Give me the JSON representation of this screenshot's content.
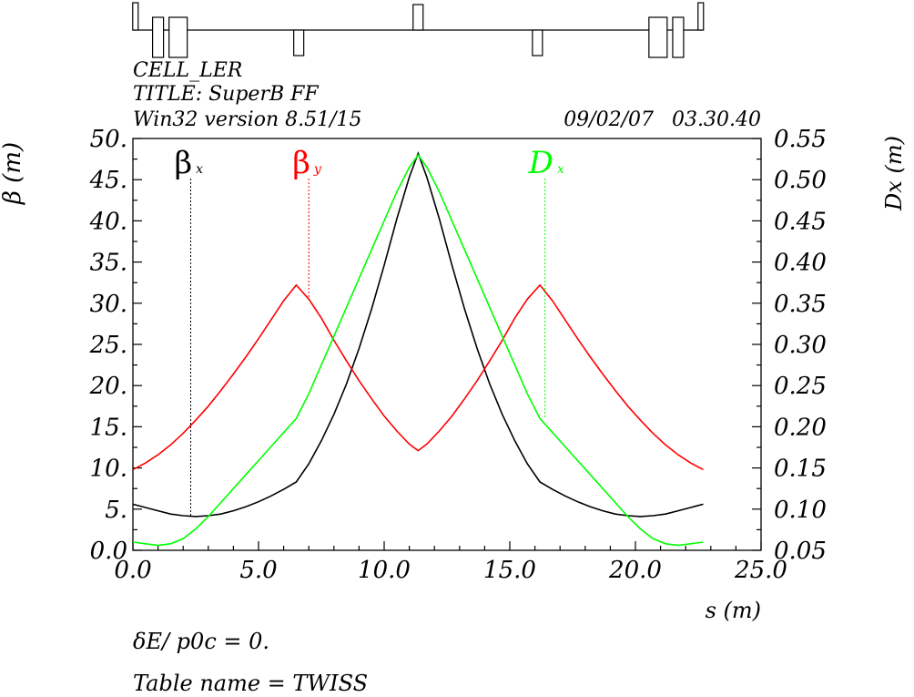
{
  "header": {
    "lines": [
      "CELL_LER",
      "TITLE: SuperB FF",
      "Win32 version 8.51/15"
    ],
    "date": "09/02/07",
    "time": "03.30.40"
  },
  "footer": {
    "delta_label": "δE/ p0c   =   0.",
    "table_name": "Table name = TWISS"
  },
  "chart_data": {
    "type": "line",
    "xlabel": "s (m)",
    "ylabel_left": "β (m)",
    "ylabel_right": "Dx (m)",
    "xlim": [
      0.0,
      25.0
    ],
    "ylim_left": [
      0.0,
      50.0
    ],
    "ylim_right": [
      0.05,
      0.55
    ],
    "x_ticks": [
      "0.0",
      "5.0",
      "10.0",
      "15.0",
      "20.0",
      "25.0"
    ],
    "y_left_ticks": [
      "0.0",
      "5.",
      "10.",
      "15.",
      "20.",
      "25.",
      "30.",
      "35.",
      "40.",
      "45.",
      "50."
    ],
    "y_right_ticks": [
      "0.05",
      "0.10",
      "0.15",
      "0.20",
      "0.25",
      "0.30",
      "0.35",
      "0.40",
      "0.45",
      "0.50",
      "0.55"
    ],
    "grid": false,
    "legend_placement": "top",
    "series": [
      {
        "name": "βx",
        "axis": "left",
        "color": "#000000",
        "legend_x": 2.3,
        "points": [
          [
            0,
            5.6
          ],
          [
            0.5,
            5.2
          ],
          [
            1,
            4.8
          ],
          [
            1.5,
            4.4
          ],
          [
            2,
            4.2
          ],
          [
            2.5,
            4.1
          ],
          [
            3,
            4.2
          ],
          [
            3.5,
            4.4
          ],
          [
            4,
            4.8
          ],
          [
            4.5,
            5.3
          ],
          [
            5,
            5.9
          ],
          [
            5.5,
            6.6
          ],
          [
            6,
            7.4
          ],
          [
            6.5,
            8.3
          ],
          [
            7,
            10.5
          ],
          [
            7.5,
            13.3
          ],
          [
            8,
            16.5
          ],
          [
            8.5,
            20.2
          ],
          [
            9,
            24.5
          ],
          [
            9.5,
            29.3
          ],
          [
            10,
            34.6
          ],
          [
            10.5,
            40.2
          ],
          [
            11,
            45.3
          ],
          [
            11.35,
            48.2
          ],
          [
            11.7,
            45.3
          ],
          [
            12.2,
            40.2
          ],
          [
            12.7,
            34.6
          ],
          [
            13.2,
            29.3
          ],
          [
            13.7,
            24.5
          ],
          [
            14.2,
            20.2
          ],
          [
            14.7,
            16.5
          ],
          [
            15.2,
            13.3
          ],
          [
            15.7,
            10.5
          ],
          [
            16.2,
            8.3
          ],
          [
            16.7,
            7.4
          ],
          [
            17.2,
            6.6
          ],
          [
            17.7,
            5.9
          ],
          [
            18.2,
            5.3
          ],
          [
            18.7,
            4.8
          ],
          [
            19.2,
            4.4
          ],
          [
            19.7,
            4.2
          ],
          [
            20.2,
            4.1
          ],
          [
            20.7,
            4.2
          ],
          [
            21.2,
            4.4
          ],
          [
            21.7,
            4.8
          ],
          [
            22.2,
            5.2
          ],
          [
            22.7,
            5.6
          ]
        ]
      },
      {
        "name": "βy",
        "axis": "left",
        "color": "#ff0000",
        "legend_x": 7.0,
        "points": [
          [
            0,
            9.8
          ],
          [
            0.5,
            10.6
          ],
          [
            1,
            11.6
          ],
          [
            1.5,
            12.8
          ],
          [
            2,
            14.2
          ],
          [
            2.5,
            15.8
          ],
          [
            3,
            17.5
          ],
          [
            3.5,
            19.4
          ],
          [
            4,
            21.4
          ],
          [
            4.5,
            23.5
          ],
          [
            5,
            25.7
          ],
          [
            5.5,
            28.0
          ],
          [
            6,
            30.3
          ],
          [
            6.5,
            32.2
          ],
          [
            7,
            30.5
          ],
          [
            7.5,
            28.2
          ],
          [
            8,
            25.5
          ],
          [
            8.5,
            23.0
          ],
          [
            9,
            20.6
          ],
          [
            9.5,
            18.4
          ],
          [
            10,
            16.3
          ],
          [
            10.5,
            14.5
          ],
          [
            11,
            12.9
          ],
          [
            11.35,
            12.1
          ],
          [
            11.7,
            12.9
          ],
          [
            12.2,
            14.5
          ],
          [
            12.7,
            16.3
          ],
          [
            13.2,
            18.4
          ],
          [
            13.7,
            20.6
          ],
          [
            14.2,
            23.0
          ],
          [
            14.7,
            25.5
          ],
          [
            15.2,
            28.2
          ],
          [
            15.7,
            30.5
          ],
          [
            16.2,
            32.2
          ],
          [
            16.7,
            30.3
          ],
          [
            17.2,
            28.0
          ],
          [
            17.7,
            25.7
          ],
          [
            18.2,
            23.5
          ],
          [
            18.7,
            21.4
          ],
          [
            19.2,
            19.4
          ],
          [
            19.7,
            17.5
          ],
          [
            20.2,
            15.8
          ],
          [
            20.7,
            14.2
          ],
          [
            21.2,
            12.8
          ],
          [
            21.7,
            11.6
          ],
          [
            22.2,
            10.6
          ],
          [
            22.7,
            9.8
          ]
        ]
      },
      {
        "name": "Dx",
        "axis": "right",
        "color": "#00ff00",
        "legend_x": 16.4,
        "points": [
          [
            0,
            0.06
          ],
          [
            0.5,
            0.058
          ],
          [
            1,
            0.056
          ],
          [
            1.5,
            0.058
          ],
          [
            2,
            0.064
          ],
          [
            2.5,
            0.076
          ],
          [
            3,
            0.091
          ],
          [
            3.5,
            0.108
          ],
          [
            4,
            0.125
          ],
          [
            4.5,
            0.142
          ],
          [
            5,
            0.159
          ],
          [
            5.5,
            0.176
          ],
          [
            6,
            0.193
          ],
          [
            6.5,
            0.21
          ],
          [
            7,
            0.24
          ],
          [
            7.5,
            0.275
          ],
          [
            8,
            0.31
          ],
          [
            8.5,
            0.345
          ],
          [
            9,
            0.38
          ],
          [
            9.5,
            0.415
          ],
          [
            10,
            0.45
          ],
          [
            10.5,
            0.485
          ],
          [
            11,
            0.515
          ],
          [
            11.35,
            0.53
          ],
          [
            11.7,
            0.515
          ],
          [
            12.2,
            0.485
          ],
          [
            12.7,
            0.45
          ],
          [
            13.2,
            0.415
          ],
          [
            13.7,
            0.38
          ],
          [
            14.2,
            0.345
          ],
          [
            14.7,
            0.31
          ],
          [
            15.2,
            0.275
          ],
          [
            15.7,
            0.24
          ],
          [
            16.2,
            0.21
          ],
          [
            16.7,
            0.193
          ],
          [
            17.2,
            0.176
          ],
          [
            17.7,
            0.159
          ],
          [
            18.2,
            0.142
          ],
          [
            18.7,
            0.125
          ],
          [
            19.2,
            0.108
          ],
          [
            19.7,
            0.091
          ],
          [
            20.2,
            0.076
          ],
          [
            20.7,
            0.064
          ],
          [
            21.2,
            0.058
          ],
          [
            21.7,
            0.056
          ],
          [
            22.2,
            0.058
          ],
          [
            22.7,
            0.06
          ]
        ]
      }
    ],
    "lattice": [
      {
        "type": "quad",
        "s": 0.1,
        "sign": 1
      },
      {
        "type": "quad",
        "s": 1.0,
        "sign": 1
      },
      {
        "type": "quad",
        "s": 1.8,
        "sign": 1
      },
      {
        "type": "quad",
        "s": 6.6,
        "sign": -1
      },
      {
        "type": "quad",
        "s": 11.35,
        "sign": 1
      },
      {
        "type": "quad",
        "s": 16.1,
        "sign": -1
      },
      {
        "type": "quad",
        "s": 20.9,
        "sign": 1
      },
      {
        "type": "quad",
        "s": 21.7,
        "sign": 1
      },
      {
        "type": "quad",
        "s": 22.6,
        "sign": 1
      }
    ]
  }
}
